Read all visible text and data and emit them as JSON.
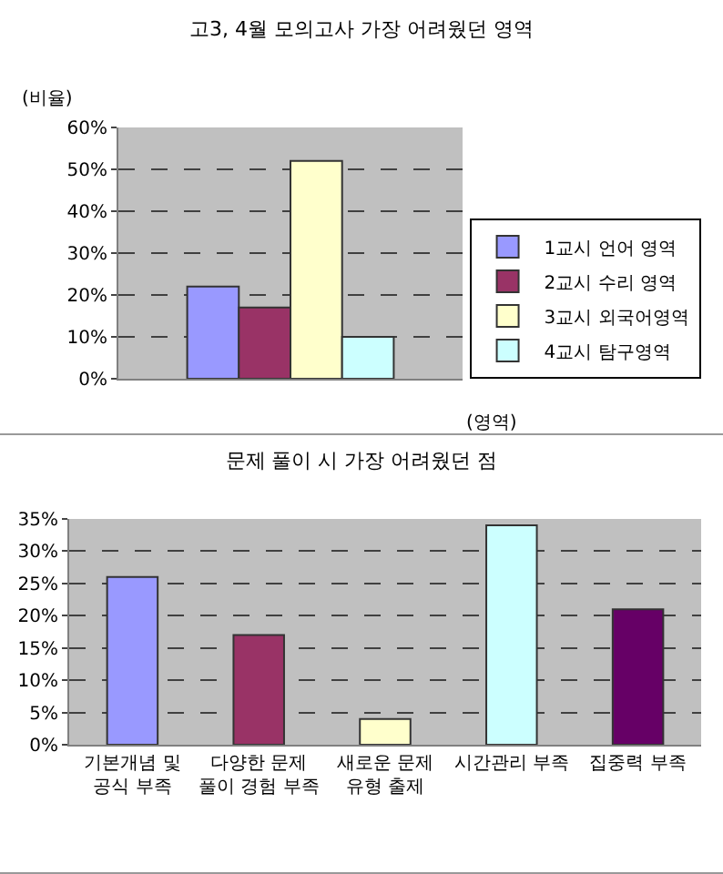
{
  "chart_data": [
    {
      "type": "bar",
      "title": "고3, 4월 모의고사 가장 어려웠던 영역",
      "ylabel": "(비율)",
      "xlabel": "(영역)",
      "categories": [
        null
      ],
      "series": [
        {
          "name": "1교시 언어 영역",
          "color": "#9999ff",
          "values": [
            22
          ]
        },
        {
          "name": "2교시 수리 영역",
          "color": "#993366",
          "values": [
            17
          ]
        },
        {
          "name": "3교시 외국어영역",
          "color": "#ffffcc",
          "values": [
            52
          ]
        },
        {
          "name": "4교시 탐구영역",
          "color": "#ccffff",
          "values": [
            10
          ]
        }
      ],
      "ylim": [
        0,
        60
      ],
      "yticks": [
        {
          "value": 0,
          "label": "0%"
        },
        {
          "value": 10,
          "label": "10%"
        },
        {
          "value": 20,
          "label": "20%"
        },
        {
          "value": 30,
          "label": "30%"
        },
        {
          "value": 40,
          "label": "40%"
        },
        {
          "value": 50,
          "label": "50%"
        },
        {
          "value": 60,
          "label": "60%"
        }
      ],
      "grid": "y",
      "legend": "bottom right"
    },
    {
      "type": "bar",
      "title": "문제 풀이 시 가장 어려웠던 점",
      "categories": [
        "기본개념 및 공식 부족",
        "다양한 문제 풀이 경험 부족",
        "새로운 문제 유형 출제",
        "시간관리 부족",
        "집중력 부족"
      ],
      "values": [
        26,
        17,
        4,
        34,
        21
      ],
      "colors": [
        "#9999ff",
        "#993366",
        "#ffffcc",
        "#ccffff",
        "#660066"
      ],
      "ylim": [
        0,
        35
      ],
      "yticks": [
        {
          "value": 0,
          "label": "0%"
        },
        {
          "value": 5,
          "label": "5%"
        },
        {
          "value": 10,
          "label": "10%"
        },
        {
          "value": 15,
          "label": "15%"
        },
        {
          "value": 20,
          "label": "20%"
        },
        {
          "value": 25,
          "label": "25%"
        },
        {
          "value": 30,
          "label": "30%"
        },
        {
          "value": 35,
          "label": "35%"
        }
      ],
      "grid": "y"
    }
  ]
}
